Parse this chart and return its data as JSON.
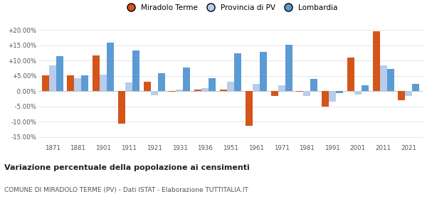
{
  "years": [
    1871,
    1881,
    1901,
    1911,
    1921,
    1931,
    1936,
    1951,
    1961,
    1971,
    1981,
    1991,
    2001,
    2011,
    2021
  ],
  "miradolo": [
    5.2,
    5.3,
    11.8,
    -10.5,
    3.2,
    -0.2,
    0.5,
    0.5,
    -11.2,
    -1.5,
    -0.2,
    -5.1,
    11.0,
    19.5,
    -3.0
  ],
  "provincia": [
    8.5,
    4.2,
    5.5,
    2.8,
    -1.2,
    0.5,
    1.0,
    3.0,
    2.5,
    2.0,
    -1.5,
    -3.5,
    -1.0,
    8.5,
    -1.5
  ],
  "lombardia": [
    11.5,
    5.2,
    15.8,
    13.3,
    6.0,
    7.8,
    4.3,
    12.5,
    12.8,
    15.2,
    4.0,
    -0.5,
    2.0,
    7.2,
    2.5
  ],
  "miradolo_color": "#d4541a",
  "provincia_color": "#b8ccec",
  "lombardia_color": "#5b9bd5",
  "title": "Variazione percentuale della popolazione ai censimenti",
  "subtitle": "COMUNE DI MIRADOLO TERME (PV) - Dati ISTAT - Elaborazione TUTTITALIA.IT",
  "ylim": [
    -17,
    22
  ],
  "yticks": [
    -15,
    -10,
    -5,
    0,
    5,
    10,
    15,
    20
  ],
  "ytick_labels": [
    "-15.00%",
    "-10.00%",
    "  -5.00%",
    "  0.00%",
    "+5.00%",
    "+10.00%",
    "+15.00%",
    "+20.00%"
  ],
  "bar_width": 0.28,
  "background_color": "#ffffff",
  "grid_color": "#e0e0e0"
}
